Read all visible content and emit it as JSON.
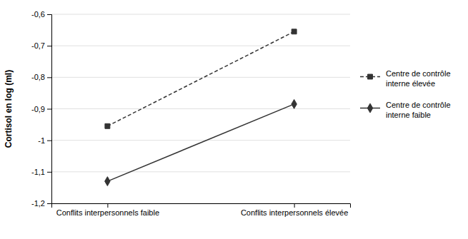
{
  "chart_data": {
    "type": "line",
    "categories": [
      "Conflits interpersonnels faible",
      "Conflits interpersonnels élevée"
    ],
    "series": [
      {
        "name": "Centre de contrôle\ninterne élevée",
        "values": [
          -0.955,
          -0.655
        ],
        "color": "#333333",
        "marker": "square",
        "line_style": "dashed"
      },
      {
        "name": "Centre de contrôle\ninterne faible",
        "values": [
          -1.13,
          -0.885
        ],
        "color": "#333333",
        "marker": "diamond",
        "line_style": "solid"
      }
    ],
    "y_label": "Cortisol en log (ml)",
    "ylim": [
      -1.2,
      -0.6
    ],
    "yticks": [
      {
        "value": -1.2,
        "label": "-1,2"
      },
      {
        "value": -1.1,
        "label": "-1,1"
      },
      -1,
      {
        "value": -0.9,
        "label": "-0,9"
      },
      {
        "value": -0.8,
        "label": "-0,8"
      },
      {
        "value": -0.7,
        "label": "-0,7"
      },
      {
        "value": -0.6,
        "label": "-0,6"
      }
    ],
    "grid": true,
    "legend": "right"
  }
}
